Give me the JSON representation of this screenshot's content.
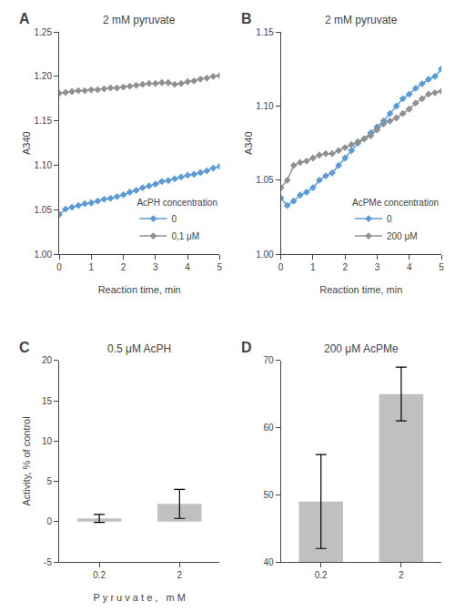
{
  "chart_data": [
    {
      "type": "line",
      "title": "2 mM pyruvate",
      "annotations": [
        "A"
      ],
      "xlabel": "Reaction time, min",
      "ylabel": "A340",
      "x": [
        0.0,
        0.2,
        0.4,
        0.6,
        0.8,
        1.0,
        1.2,
        1.4,
        1.6,
        1.8,
        2.0,
        2.2,
        2.4,
        2.6,
        2.8,
        3.0,
        3.2,
        3.4,
        3.6,
        3.8,
        4.0,
        4.2,
        4.4,
        4.6,
        4.8,
        5.0
      ],
      "series": [
        {
          "name": "0",
          "color": "#5B9BD5",
          "marker": "diamond",
          "values": [
            1.045,
            1.051,
            1.053,
            1.055,
            1.057,
            1.058,
            1.06,
            1.062,
            1.063,
            1.065,
            1.067,
            1.07,
            1.072,
            1.075,
            1.077,
            1.079,
            1.082,
            1.083,
            1.085,
            1.087,
            1.089,
            1.09,
            1.092,
            1.094,
            1.097,
            1.099
          ]
        },
        {
          "name": "0,1 μM",
          "color": "#909090",
          "marker": "diamond",
          "values": [
            1.181,
            1.182,
            1.183,
            1.184,
            1.184,
            1.185,
            1.185,
            1.186,
            1.187,
            1.187,
            1.188,
            1.189,
            1.19,
            1.191,
            1.192,
            1.192,
            1.193,
            1.193,
            1.191,
            1.192,
            1.194,
            1.195,
            1.197,
            1.198,
            1.2,
            1.201
          ]
        }
      ],
      "xlim": [
        0,
        5
      ],
      "xticks": [
        0,
        1,
        2,
        3,
        4,
        5
      ],
      "ylim": [
        1.0,
        1.25
      ],
      "yticks": [
        {
          "value": 1.0,
          "label": "1.00"
        },
        1.05,
        {
          "value": 1.1,
          "label": "1.10"
        },
        1.15,
        {
          "value": 1.2,
          "label": "1.20"
        },
        1.25
      ],
      "legend": "lower right",
      "legend_title": "AcPH concentration",
      "grid": false
    },
    {
      "type": "line",
      "title": "2 mM pyruvate",
      "annotations": [
        "B"
      ],
      "xlabel": "Reaction time, min",
      "ylabel": "A340",
      "x": [
        0.0,
        0.2,
        0.4,
        0.6,
        0.8,
        1.0,
        1.2,
        1.4,
        1.6,
        1.8,
        2.0,
        2.2,
        2.4,
        2.6,
        2.8,
        3.0,
        3.2,
        3.4,
        3.6,
        3.8,
        4.0,
        4.2,
        4.4,
        4.6,
        4.8,
        5.0
      ],
      "series": [
        {
          "name": "0",
          "color": "#5B9BD5",
          "marker": "diamond",
          "values": [
            1.038,
            1.033,
            1.036,
            1.04,
            1.042,
            1.045,
            1.05,
            1.053,
            1.055,
            1.06,
            1.065,
            1.07,
            1.075,
            1.078,
            1.082,
            1.086,
            1.09,
            1.095,
            1.1,
            1.105,
            1.108,
            1.112,
            1.115,
            1.118,
            1.12,
            1.125
          ]
        },
        {
          "name": "200 μM",
          "color": "#909090",
          "marker": "diamond",
          "values": [
            1.045,
            1.05,
            1.06,
            1.062,
            1.063,
            1.065,
            1.067,
            1.068,
            1.068,
            1.07,
            1.072,
            1.074,
            1.076,
            1.078,
            1.08,
            1.084,
            1.088,
            1.09,
            1.092,
            1.095,
            1.098,
            1.102,
            1.105,
            1.108,
            1.109,
            1.11
          ]
        }
      ],
      "xlim": [
        0,
        5
      ],
      "xticks": [
        0,
        1,
        2,
        3,
        4,
        5
      ],
      "ylim": [
        1.0,
        1.15
      ],
      "yticks": [
        {
          "value": 1.0,
          "label": "1.00"
        },
        1.05,
        {
          "value": 1.1,
          "label": "1.10"
        },
        1.15
      ],
      "legend": "lower right",
      "legend_title": "AcPMe concentration",
      "grid": false
    },
    {
      "type": "bar",
      "title": "0.5 μM AcPH",
      "annotations": [
        "C"
      ],
      "xlabel": "P y r u v a t e ,   m M",
      "ylabel": "Activity, % of control",
      "categories": [
        "0.2",
        "2"
      ],
      "values": [
        0.4,
        2.2
      ],
      "errors": [
        0.5,
        1.8
      ],
      "color": "#c0c0c0",
      "ylim": [
        -5,
        20
      ],
      "yticks": [
        -5,
        0,
        5,
        10,
        15,
        20
      ],
      "grid": false
    },
    {
      "type": "bar",
      "title": "200 μM AcPMe",
      "annotations": [
        "D"
      ],
      "categories": [
        "0.2",
        "2"
      ],
      "values": [
        49,
        65
      ],
      "errors": [
        7,
        4
      ],
      "color": "#c0c0c0",
      "ylim": [
        40,
        70
      ],
      "yticks": [
        40,
        50,
        60,
        70
      ],
      "grid": false
    }
  ]
}
